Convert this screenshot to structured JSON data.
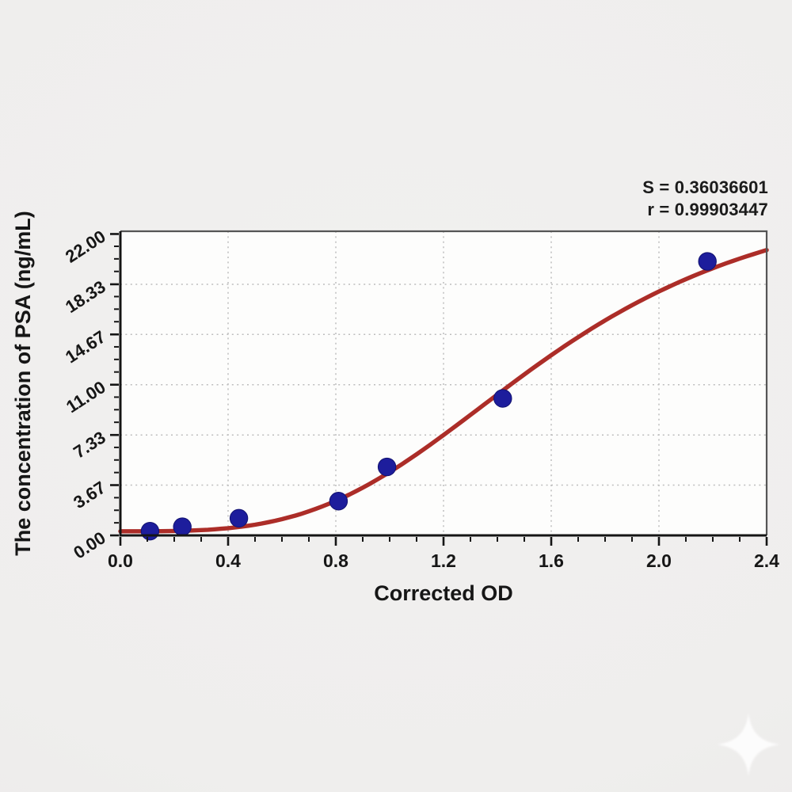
{
  "stats": {
    "s_line": "S = 0.36036601",
    "r_line": "r = 0.99903447"
  },
  "chart_data": {
    "type": "scatter",
    "title": "",
    "xlabel": "Corrected OD",
    "ylabel": "The concentration of PSA (ng/mL)",
    "xlim": [
      0,
      2.4
    ],
    "ylim": [
      0,
      22.2
    ],
    "grid": "dotted gridlines at interior major ticks",
    "legend": null,
    "x_ticks": {
      "values": [
        0.0,
        0.4,
        0.8,
        1.2,
        1.6,
        2.0,
        2.4
      ],
      "labels": [
        "0.0",
        "0.4",
        "0.8",
        "1.2",
        "1.6",
        "2.0",
        "2.4"
      ],
      "minor_divisions": 4
    },
    "y_ticks": {
      "values": [
        0.0,
        3.67,
        7.33,
        11.0,
        14.67,
        18.33,
        22.0
      ],
      "labels": [
        "0.00",
        "3.67",
        "7.33",
        "11.00",
        "14.67",
        "18.33",
        "22.00"
      ],
      "minor_divisions": 4
    },
    "series": [
      {
        "name": "standard-points",
        "type": "scatter",
        "color": "#1d1d9c",
        "points": [
          [
            0.11,
            0.31
          ],
          [
            0.23,
            0.63
          ],
          [
            0.44,
            1.25
          ],
          [
            0.81,
            2.5
          ],
          [
            0.99,
            5.0
          ],
          [
            1.42,
            10.0
          ],
          [
            2.18,
            20.0
          ]
        ]
      },
      {
        "name": "4PL-fit-curve",
        "type": "line",
        "color": "#ac2d28",
        "model": "4PL",
        "params": {
          "a": 0.3,
          "b": 3.4,
          "c": 1.6,
          "d": 26.0
        },
        "x_range": [
          0,
          2.4
        ]
      }
    ],
    "annotations": [
      "S = 0.36036601",
      "r = 0.99903447"
    ]
  },
  "colors": {
    "background": "#efeeed",
    "plot_background": "#fdfdfc",
    "axis": "#151515",
    "frame": "#555555",
    "grid": "#bdbdbd",
    "point": "#1d1d9c",
    "curve": "#ac2d28",
    "text": "#161616",
    "watermark": "#ffffff"
  },
  "watermark": {
    "shape": "four-point-star"
  }
}
